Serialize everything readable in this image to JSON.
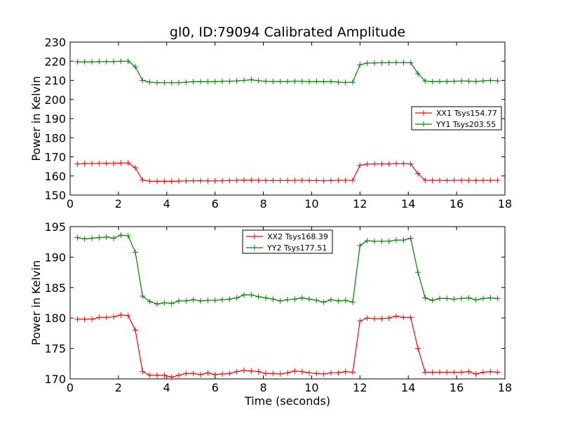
{
  "chart_data": [
    {
      "type": "line",
      "title": "gl0, ID:79094 Calibrated Amplitude",
      "xlabel": "",
      "ylabel": "Power in Kelvin",
      "xlim": [
        0,
        18
      ],
      "ylim": [
        150,
        230
      ],
      "xticks": [
        0,
        2,
        4,
        6,
        8,
        10,
        12,
        14,
        16,
        18
      ],
      "yticks": [
        150,
        160,
        170,
        180,
        190,
        200,
        210,
        220,
        230
      ],
      "legend_position": "center-right",
      "grid": false,
      "x": [
        0.3,
        0.6,
        0.9,
        1.2,
        1.5,
        1.8,
        2.1,
        2.4,
        2.7,
        3.0,
        3.3,
        3.6,
        3.9,
        4.2,
        4.5,
        4.8,
        5.1,
        5.4,
        5.7,
        6.0,
        6.3,
        6.6,
        6.9,
        7.2,
        7.5,
        7.8,
        8.1,
        8.4,
        8.7,
        9.0,
        9.3,
        9.6,
        9.9,
        10.2,
        10.5,
        10.8,
        11.1,
        11.4,
        11.7,
        12.0,
        12.3,
        12.6,
        12.9,
        13.2,
        13.5,
        13.8,
        14.1,
        14.4,
        14.7,
        15.0,
        15.3,
        15.6,
        15.9,
        16.2,
        16.5,
        16.8,
        17.1,
        17.4,
        17.7
      ],
      "series": [
        {
          "name": "XX1 Tsys154.77",
          "color": "#ff0000",
          "values": [
            166.3,
            166.4,
            166.5,
            166.5,
            166.6,
            166.5,
            166.8,
            166.8,
            164.3,
            157.9,
            157.3,
            157.2,
            157.2,
            157.2,
            157.3,
            157.4,
            157.5,
            157.5,
            157.4,
            157.4,
            157.5,
            157.6,
            157.7,
            157.8,
            157.8,
            157.7,
            157.6,
            157.6,
            157.6,
            157.6,
            157.7,
            157.7,
            157.6,
            157.6,
            157.5,
            157.6,
            157.7,
            157.7,
            157.7,
            165.6,
            166.2,
            166.3,
            166.3,
            166.3,
            166.4,
            166.4,
            166.3,
            161.2,
            157.7,
            157.7,
            157.7,
            157.6,
            157.7,
            157.7,
            157.7,
            157.6,
            157.7,
            157.7,
            157.7
          ]
        },
        {
          "name": "YY1 Tsys203.55",
          "color": "#008000",
          "values": [
            219.7,
            219.7,
            219.7,
            219.8,
            219.8,
            219.8,
            220.0,
            220.1,
            217.1,
            210.0,
            209.1,
            208.8,
            208.8,
            208.8,
            208.8,
            209.0,
            209.3,
            209.3,
            209.3,
            209.3,
            209.5,
            209.5,
            209.7,
            210.0,
            210.3,
            209.8,
            209.5,
            209.4,
            209.4,
            209.4,
            209.5,
            209.5,
            209.3,
            209.4,
            209.3,
            209.4,
            209.1,
            208.9,
            209.0,
            218.2,
            219.0,
            219.1,
            219.2,
            219.2,
            219.3,
            219.3,
            219.2,
            213.5,
            209.6,
            209.3,
            209.4,
            209.4,
            209.5,
            209.7,
            209.6,
            209.4,
            209.7,
            210.0,
            209.7
          ]
        }
      ]
    },
    {
      "type": "line",
      "title": "",
      "xlabel": "Time (seconds)",
      "ylabel": "Power in Kelvin",
      "xlim": [
        0,
        18
      ],
      "ylim": [
        170,
        195
      ],
      "xticks": [
        0,
        2,
        4,
        6,
        8,
        10,
        12,
        14,
        16,
        18
      ],
      "yticks": [
        170,
        175,
        180,
        185,
        190,
        195
      ],
      "legend_position": "top-center",
      "grid": false,
      "x": [
        0.3,
        0.6,
        0.9,
        1.2,
        1.5,
        1.8,
        2.1,
        2.4,
        2.7,
        3.0,
        3.3,
        3.6,
        3.9,
        4.2,
        4.5,
        4.8,
        5.1,
        5.4,
        5.7,
        6.0,
        6.3,
        6.6,
        6.9,
        7.2,
        7.5,
        7.8,
        8.1,
        8.4,
        8.7,
        9.0,
        9.3,
        9.6,
        9.9,
        10.2,
        10.5,
        10.8,
        11.1,
        11.4,
        11.7,
        12.0,
        12.3,
        12.6,
        12.9,
        13.2,
        13.5,
        13.8,
        14.1,
        14.4,
        14.7,
        15.0,
        15.3,
        15.6,
        15.9,
        16.2,
        16.5,
        16.8,
        17.1,
        17.4,
        17.7
      ],
      "series": [
        {
          "name": "XX2 Tsys168.39",
          "color": "#ff0000",
          "values": [
            179.8,
            179.8,
            179.8,
            180.1,
            180.1,
            180.2,
            180.5,
            180.4,
            178.0,
            171.2,
            170.6,
            170.6,
            170.6,
            170.3,
            170.6,
            170.9,
            170.9,
            170.7,
            171.0,
            170.7,
            170.8,
            170.9,
            171.2,
            171.4,
            171.3,
            171.2,
            170.9,
            170.9,
            170.8,
            171.0,
            171.3,
            171.2,
            171.0,
            170.9,
            170.8,
            171.0,
            171.0,
            171.2,
            171.1,
            179.5,
            180.0,
            179.9,
            179.9,
            180.0,
            180.3,
            180.1,
            180.1,
            175.0,
            171.1,
            171.1,
            171.1,
            171.1,
            171.1,
            171.1,
            171.2,
            170.8,
            171.1,
            171.2,
            171.1
          ]
        },
        {
          "name": "YY2 Tsys177.51",
          "color": "#008000",
          "values": [
            193.2,
            193.0,
            193.1,
            193.2,
            193.3,
            193.1,
            193.6,
            193.5,
            190.8,
            183.6,
            182.7,
            182.3,
            182.5,
            182.4,
            182.8,
            182.8,
            183.0,
            182.8,
            182.9,
            182.9,
            183.0,
            183.1,
            183.3,
            183.8,
            183.8,
            183.5,
            183.3,
            183.1,
            182.8,
            183.0,
            183.1,
            183.3,
            183.1,
            182.9,
            182.6,
            183.0,
            182.8,
            182.9,
            182.6,
            191.9,
            192.7,
            192.6,
            192.6,
            192.6,
            192.8,
            192.8,
            193.1,
            187.5,
            183.3,
            182.9,
            183.2,
            183.2,
            183.1,
            183.2,
            183.3,
            183.0,
            183.2,
            183.3,
            183.2
          ]
        }
      ]
    }
  ]
}
